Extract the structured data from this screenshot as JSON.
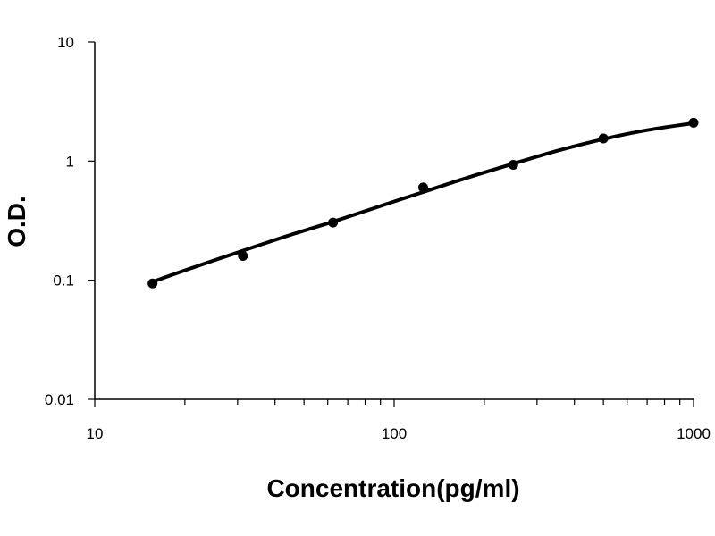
{
  "chart_data": {
    "type": "scatter",
    "title": "",
    "xlabel": "Concentration(pg/ml)",
    "ylabel": "O.D.",
    "x_scale": "log",
    "y_scale": "log",
    "xlim": [
      10,
      1000
    ],
    "ylim": [
      0.01,
      10
    ],
    "x_ticks": [
      "10",
      "100",
      "1000"
    ],
    "y_ticks": [
      "10",
      "1",
      "0.1",
      "0.01"
    ],
    "grid": false,
    "legend": "none",
    "series": [
      {
        "x": [
          15.6,
          31.25,
          62.5,
          125,
          250,
          500,
          1000
        ],
        "y": [
          0.094,
          0.16,
          0.305,
          0.6,
          0.93,
          1.55,
          2.1
        ]
      }
    ],
    "fit_curve": {
      "x": [
        15.6,
        20,
        31.25,
        45,
        62.5,
        90,
        125,
        180,
        250,
        350,
        500,
        700,
        1000
      ],
      "y": [
        0.097,
        0.121,
        0.177,
        0.24,
        0.31,
        0.42,
        0.55,
        0.74,
        0.95,
        1.22,
        1.53,
        1.82,
        2.08
      ]
    },
    "colors": {
      "marker": "#000000",
      "curve": "#000000",
      "axis": "#000000"
    }
  }
}
